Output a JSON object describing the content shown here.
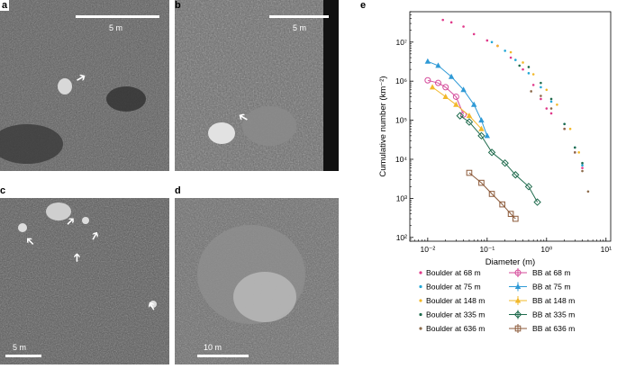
{
  "panels": {
    "a": {
      "letter": "a",
      "scale": "5 m"
    },
    "b": {
      "letter": "b",
      "scale": "5 m"
    },
    "c": {
      "letter": "c",
      "scale": "5 m"
    },
    "d": {
      "letter": "d",
      "scale": "10 m"
    },
    "e": {
      "letter": "e"
    }
  },
  "icons": {
    "arrow": "white-arrow-icon"
  },
  "chart_data": {
    "type": "scatter",
    "xlabel": "Diameter (m)",
    "ylabel": "Cumulative number (km⁻²)",
    "xscale": "log",
    "yscale": "log",
    "xlim": [
      0.005,
      12
    ],
    "ylim": [
      80,
      60000000
    ],
    "xticks": [
      "10⁻²",
      "10⁻¹",
      "10⁰",
      "10¹"
    ],
    "yticks": [
      "10²",
      "10³",
      "10⁴",
      "10⁵",
      "10⁶",
      "10⁷"
    ],
    "legend_position": "bottom",
    "series": [
      {
        "name": "Boulder at 68 m",
        "color": "#e0398a",
        "marker": "dot",
        "points": [
          [
            0.018,
            37000000
          ],
          [
            0.025,
            32000000
          ],
          [
            0.04,
            25000000
          ],
          [
            0.06,
            16000000
          ],
          [
            0.1,
            11000000
          ],
          [
            0.15,
            8000000
          ],
          [
            0.25,
            4000000
          ],
          [
            0.4,
            2000000
          ],
          [
            0.6,
            800000
          ],
          [
            0.8,
            350000
          ],
          [
            1.0,
            200000
          ],
          [
            1.2,
            150000
          ],
          [
            2.0,
            60000
          ],
          [
            3.0,
            15000
          ],
          [
            4.0,
            6000
          ]
        ]
      },
      {
        "name": "Boulder at 75 m",
        "color": "#22a7d6",
        "marker": "dot",
        "points": [
          [
            0.12,
            10000000
          ],
          [
            0.2,
            6000000
          ],
          [
            0.3,
            3500000
          ],
          [
            0.5,
            1600000
          ],
          [
            0.8,
            700000
          ],
          [
            1.2,
            300000
          ],
          [
            2.0,
            80000
          ],
          [
            3.0,
            20000
          ],
          [
            4.0,
            7000
          ]
        ]
      },
      {
        "name": "Boulder at 148 m",
        "color": "#f2b82a",
        "marker": "dot",
        "points": [
          [
            0.15,
            8000000
          ],
          [
            0.25,
            5500000
          ],
          [
            0.4,
            3000000
          ],
          [
            0.6,
            1500000
          ],
          [
            1.0,
            600000
          ],
          [
            1.5,
            250000
          ],
          [
            2.5,
            60000
          ],
          [
            3.5,
            15000
          ]
        ]
      },
      {
        "name": "Boulder at 335 m",
        "color": "#1f6b4d",
        "marker": "dot",
        "points": [
          [
            0.35,
            2500000
          ],
          [
            0.5,
            2300000
          ],
          [
            0.8,
            900000
          ],
          [
            1.2,
            350000
          ],
          [
            2.0,
            80000
          ],
          [
            3.0,
            20000
          ],
          [
            4.0,
            8000
          ]
        ]
      },
      {
        "name": "Boulder at 636 m",
        "color": "#8c6a4a",
        "marker": "dot",
        "points": [
          [
            0.55,
            550000
          ],
          [
            0.8,
            420000
          ],
          [
            1.2,
            200000
          ],
          [
            2.0,
            60000
          ],
          [
            3.0,
            15000
          ],
          [
            4.0,
            5000
          ],
          [
            5.0,
            1500
          ]
        ]
      },
      {
        "name": "BB at 68 m",
        "color": "#d44a9a",
        "marker": "circle",
        "points": [
          [
            0.01,
            1050000
          ],
          [
            0.015,
            900000
          ],
          [
            0.02,
            700000
          ],
          [
            0.03,
            400000
          ],
          [
            0.04,
            140000
          ]
        ]
      },
      {
        "name": "BB at 75 m",
        "color": "#2f9ad6",
        "marker": "triangle",
        "points": [
          [
            0.01,
            3200000
          ],
          [
            0.015,
            2500000
          ],
          [
            0.025,
            1300000
          ],
          [
            0.04,
            600000
          ],
          [
            0.06,
            250000
          ],
          [
            0.08,
            100000
          ],
          [
            0.1,
            40000
          ]
        ]
      },
      {
        "name": "BB at 148 m",
        "color": "#f2b82a",
        "marker": "triangle",
        "points": [
          [
            0.012,
            700000
          ],
          [
            0.02,
            400000
          ],
          [
            0.03,
            250000
          ],
          [
            0.05,
            130000
          ],
          [
            0.08,
            60000
          ]
        ]
      },
      {
        "name": "BB at 335 m",
        "color": "#1f6b4d",
        "marker": "diamond",
        "points": [
          [
            0.035,
            130000
          ],
          [
            0.05,
            90000
          ],
          [
            0.08,
            40000
          ],
          [
            0.12,
            15000
          ],
          [
            0.2,
            8000
          ],
          [
            0.3,
            4000
          ],
          [
            0.5,
            2000
          ],
          [
            0.7,
            800
          ]
        ]
      },
      {
        "name": "BB at 636 m",
        "color": "#8c5a3a",
        "marker": "square",
        "points": [
          [
            0.05,
            4500
          ],
          [
            0.08,
            2500
          ],
          [
            0.12,
            1300
          ],
          [
            0.18,
            700
          ],
          [
            0.25,
            400
          ],
          [
            0.3,
            300
          ]
        ]
      }
    ]
  }
}
